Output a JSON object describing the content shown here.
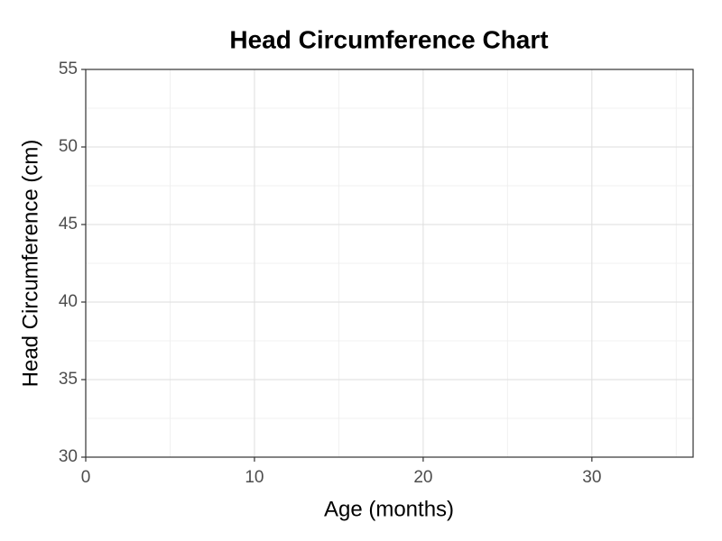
{
  "chart_data": {
    "type": "line",
    "title": "Head Circumference Chart",
    "x_label": "Age (months)",
    "y_label": "Head Circumference (cm)",
    "xlim": [
      0,
      36
    ],
    "xticks": [
      0,
      10,
      20,
      30
    ],
    "ylim": [
      30,
      55
    ],
    "yticks": [
      30,
      35,
      40,
      45,
      50,
      55
    ],
    "grid": true,
    "minor_grid": true
  }
}
